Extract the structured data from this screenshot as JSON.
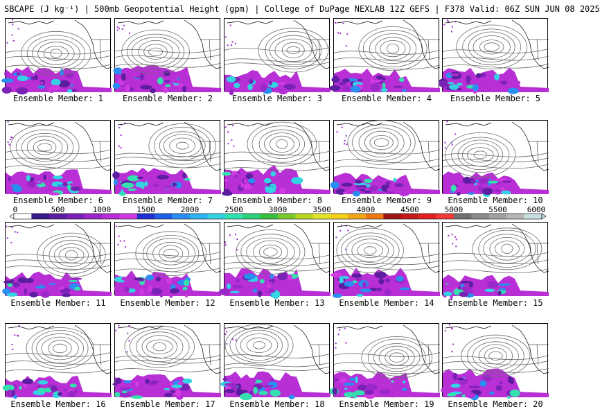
{
  "header": {
    "title": "SBCAPE (J kg⁻¹) | 500mb Geopotential Height (gpm) | College of DuPage NEXLAB 12Z GEFS | F378 Valid: 06Z SUN JUN 08 2025"
  },
  "colorbar": {
    "ticks": [
      "0",
      "500",
      "1000",
      "1500",
      "2000",
      "2500",
      "3000",
      "3500",
      "4000",
      "4500",
      "5000",
      "5500",
      "6000"
    ],
    "min": 0,
    "max": 6000,
    "colors": [
      "#ffffff",
      "#3a1a86",
      "#5c1da0",
      "#7b22b6",
      "#9a28c8",
      "#b82fd6",
      "#d13ae0",
      "#1f2fd0",
      "#1e5fe6",
      "#2a8df0",
      "#2fb2ef",
      "#33d3e4",
      "#34e0b0",
      "#2fd07a",
      "#3bbf3f",
      "#7ac92e",
      "#b7d628",
      "#e3e42a",
      "#f5cf1e",
      "#f3a518",
      "#ec7a14",
      "#9a1616",
      "#c41a1a",
      "#e02020",
      "#f03a3a",
      "#707070",
      "#8a8a8a",
      "#a0a0a0",
      "#b6b6b6",
      "#c8dde2"
    ]
  },
  "members": [
    {
      "label": "Ensemble Member: 1"
    },
    {
      "label": "Ensemble Member: 2"
    },
    {
      "label": "Ensemble Member: 3"
    },
    {
      "label": "Ensemble Member: 4"
    },
    {
      "label": "Ensemble Member: 5"
    },
    {
      "label": "Ensemble Member: 6"
    },
    {
      "label": "Ensemble Member: 7"
    },
    {
      "label": "Ensemble Member: 8"
    },
    {
      "label": "Ensemble Member: 9"
    },
    {
      "label": "Ensemble Member: 10"
    },
    {
      "label": "Ensemble Member: 11"
    },
    {
      "label": "Ensemble Member: 12"
    },
    {
      "label": "Ensemble Member: 13"
    },
    {
      "label": "Ensemble Member: 14"
    },
    {
      "label": "Ensemble Member: 15"
    },
    {
      "label": "Ensemble Member: 16"
    },
    {
      "label": "Ensemble Member: 17"
    },
    {
      "label": "Ensemble Member: 18"
    },
    {
      "label": "Ensemble Member: 19"
    },
    {
      "label": "Ensemble Member: 20"
    }
  ]
}
